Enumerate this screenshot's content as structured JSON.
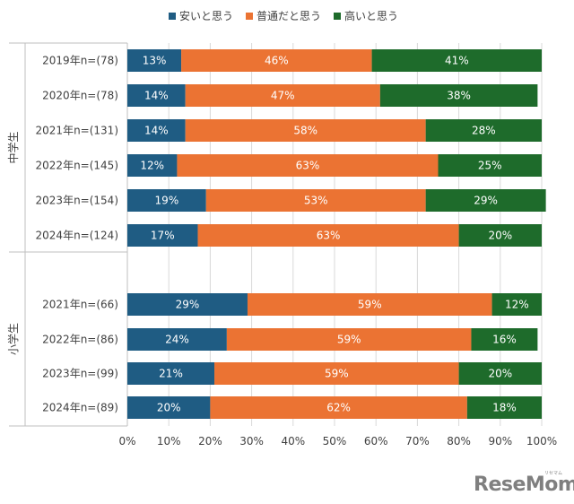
{
  "chart_data": {
    "type": "bar",
    "orientation": "horizontal-stacked-percent",
    "xlim": [
      0,
      100
    ],
    "x_ticks": [
      "0%",
      "10%",
      "20%",
      "30%",
      "40%",
      "50%",
      "60%",
      "70%",
      "80%",
      "90%",
      "100%"
    ],
    "legend": {
      "placement": "top-center"
    },
    "series": [
      {
        "name": "安いと思う",
        "color": "#1f5c83"
      },
      {
        "name": "普通だと思う",
        "color": "#eb7333"
      },
      {
        "name": "高いと思う",
        "color": "#1e6b2b"
      }
    ],
    "groups": [
      {
        "label": "中学生",
        "rows": [
          {
            "label": "2019年n=(78)",
            "values": [
              13,
              46,
              41
            ]
          },
          {
            "label": "2020年n=(78)",
            "values": [
              14,
              47,
              38
            ]
          },
          {
            "label": "2021年n=(131)",
            "values": [
              14,
              58,
              28
            ]
          },
          {
            "label": "2022年n=(145)",
            "values": [
              12,
              63,
              25
            ]
          },
          {
            "label": "2023年n=(154)",
            "values": [
              19,
              53,
              29
            ]
          },
          {
            "label": "2024年n=(124)",
            "values": [
              17,
              63,
              20
            ]
          }
        ]
      },
      {
        "label": "小学生",
        "rows": [
          {
            "label": "2021年n=(66)",
            "values": [
              29,
              59,
              12
            ]
          },
          {
            "label": "2022年n=(86)",
            "values": [
              24,
              59,
              16
            ]
          },
          {
            "label": "2023年n=(99)",
            "values": [
              21,
              59,
              20
            ]
          },
          {
            "label": "2024年n=(89)",
            "values": [
              20,
              62,
              18
            ]
          }
        ]
      }
    ],
    "grid": true
  },
  "watermark": {
    "text": "ReseMom",
    "sub": "リセマム"
  }
}
